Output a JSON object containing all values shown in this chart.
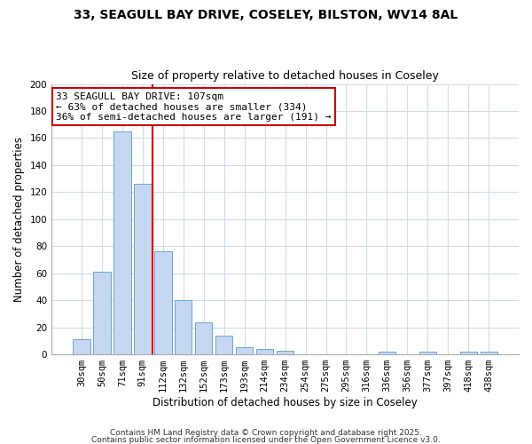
{
  "title_line1": "33, SEAGULL BAY DRIVE, COSELEY, BILSTON, WV14 8AL",
  "title_line2": "Size of property relative to detached houses in Coseley",
  "xlabel": "Distribution of detached houses by size in Coseley",
  "ylabel": "Number of detached properties",
  "categories": [
    "30sqm",
    "50sqm",
    "71sqm",
    "91sqm",
    "112sqm",
    "132sqm",
    "152sqm",
    "173sqm",
    "193sqm",
    "214sqm",
    "234sqm",
    "254sqm",
    "275sqm",
    "295sqm",
    "316sqm",
    "336sqm",
    "356sqm",
    "377sqm",
    "397sqm",
    "418sqm",
    "438sqm"
  ],
  "values": [
    11,
    61,
    165,
    126,
    76,
    40,
    24,
    14,
    5,
    4,
    3,
    0,
    0,
    0,
    0,
    2,
    0,
    2,
    0,
    2,
    2
  ],
  "bar_color": "#c5d8f0",
  "bar_edge_color": "#6aa3d5",
  "vline_x_idx": 4,
  "vline_color": "#cc0000",
  "annotation_text": "33 SEAGULL BAY DRIVE: 107sqm\n← 63% of detached houses are smaller (334)\n36% of semi-detached houses are larger (191) →",
  "annotation_box_color": "#ffffff",
  "annotation_box_edge_color": "#cc0000",
  "footer_line1": "Contains HM Land Registry data © Crown copyright and database right 2025.",
  "footer_line2": "Contains public sector information licensed under the Open Government Licence v3.0.",
  "bg_color": "#ffffff",
  "plot_bg_color": "#ffffff",
  "grid_color": "#d0dce8",
  "ylim": [
    0,
    200
  ],
  "yticks": [
    0,
    20,
    40,
    60,
    80,
    100,
    120,
    140,
    160,
    180,
    200
  ]
}
